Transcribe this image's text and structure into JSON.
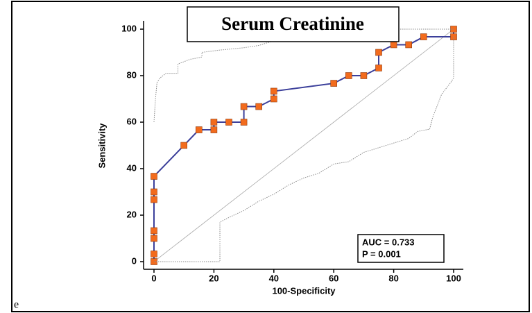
{
  "chart_data": {
    "type": "line",
    "title": "Serum Creatinine",
    "x_label": "100-Specificity",
    "y_label": "Sensitivity",
    "annotations": [
      "AUC = 0.733",
      "P = 0.001"
    ],
    "panel_label": "e",
    "xlim": [
      0,
      100
    ],
    "ylim": [
      0,
      100
    ],
    "xticks": [
      0,
      20,
      40,
      60,
      80,
      100
    ],
    "yticks": [
      0,
      20,
      40,
      60,
      80,
      100
    ],
    "reference_line": true,
    "series": [
      {
        "color": "#3b3f9a",
        "marker_color": "#f26b1d",
        "style": "solid",
        "x": [
          0,
          0,
          0,
          0,
          0,
          0,
          0,
          10,
          15,
          20,
          20,
          25,
          30,
          30,
          35,
          40,
          40,
          60,
          65,
          70,
          75,
          75,
          80,
          85,
          90,
          100,
          100
        ],
        "values": [
          0,
          3.3,
          10,
          13.3,
          26.7,
          30,
          36.7,
          50,
          56.7,
          56.7,
          60,
          60,
          60,
          66.7,
          66.7,
          70,
          73.3,
          76.7,
          80,
          80,
          83.3,
          90,
          93.3,
          93.3,
          96.7,
          96.7,
          100
        ]
      },
      {
        "color": "#8a8a8a",
        "style": "dotted",
        "x": [
          0,
          0.5,
          1,
          2,
          4,
          8,
          8,
          12,
          16,
          16,
          22,
          30,
          35,
          40,
          50,
          60,
          70,
          80,
          100
        ],
        "values": [
          60,
          70,
          77,
          79,
          81,
          81,
          85,
          87,
          88,
          90,
          91,
          92,
          93,
          95,
          97,
          98,
          99,
          100,
          100
        ]
      },
      {
        "color": "#8a8a8a",
        "style": "dotted",
        "x": [
          0,
          22,
          22,
          25,
          30,
          35,
          40,
          45,
          50,
          55,
          60,
          65,
          70,
          80,
          85,
          88,
          92,
          93,
          96,
          99,
          100,
          100
        ],
        "values": [
          0,
          0,
          17,
          19,
          22,
          26,
          29,
          33,
          36,
          38,
          42,
          43,
          47,
          51,
          53,
          56,
          57,
          62,
          72,
          77,
          79,
          97
        ]
      }
    ]
  }
}
